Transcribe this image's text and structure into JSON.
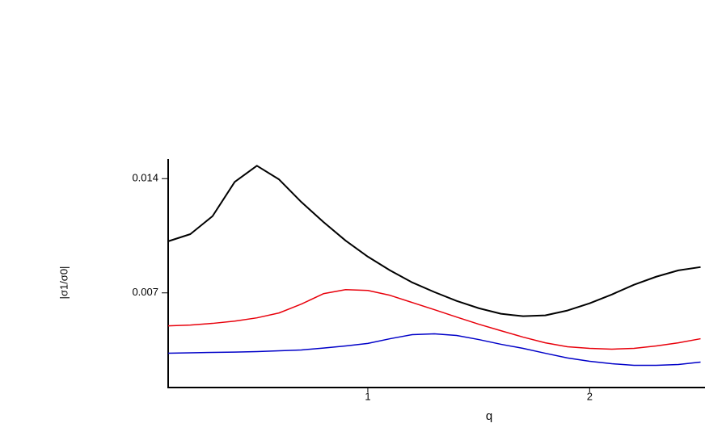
{
  "chart_data": {
    "type": "line",
    "x_label": "q",
    "y_label": "|σ1/σ0|",
    "x": [
      0.1,
      0.2,
      0.3,
      0.4,
      0.5,
      0.6,
      0.7,
      0.8,
      0.9,
      1.0,
      1.1,
      1.2,
      1.3,
      1.4,
      1.5,
      1.6,
      1.7,
      1.8,
      1.9,
      2.0,
      2.1,
      2.2,
      2.3,
      2.4,
      2.5
    ],
    "series": [
      {
        "color": "#000000",
        "values": [
          0.01016,
          0.0106,
          0.0117,
          0.0138,
          0.01479,
          0.01395,
          0.01257,
          0.01134,
          0.0102,
          0.00922,
          0.00838,
          0.00764,
          0.00705,
          0.00651,
          0.00606,
          0.00572,
          0.00557,
          0.00562,
          0.00592,
          0.00636,
          0.0069,
          0.0075,
          0.00799,
          0.00838,
          0.00858
        ]
      },
      {
        "color": "#e8000b",
        "values": [
          0.00498,
          0.00503,
          0.00513,
          0.00527,
          0.00547,
          0.00577,
          0.00631,
          0.00695,
          0.0072,
          0.00715,
          0.00685,
          0.00641,
          0.00597,
          0.00552,
          0.00508,
          0.00468,
          0.00429,
          0.00394,
          0.0037,
          0.0036,
          0.00355,
          0.0036,
          0.00375,
          0.00394,
          0.00419
        ]
      },
      {
        "color": "#0000c8",
        "values": [
          0.0033,
          0.00333,
          0.00335,
          0.00337,
          0.0034,
          0.00345,
          0.0035,
          0.00362,
          0.00375,
          0.0039,
          0.00419,
          0.00444,
          0.00449,
          0.00439,
          0.00414,
          0.00385,
          0.0036,
          0.0033,
          0.00301,
          0.00281,
          0.00266,
          0.00256,
          0.00256,
          0.00261,
          0.00276
        ]
      }
    ],
    "xlim": [
      0.1,
      2.52
    ],
    "ylim": [
      0.0012,
      0.0152
    ],
    "xticks": [
      1,
      2
    ],
    "yticks": [
      0.007,
      0.014
    ]
  }
}
